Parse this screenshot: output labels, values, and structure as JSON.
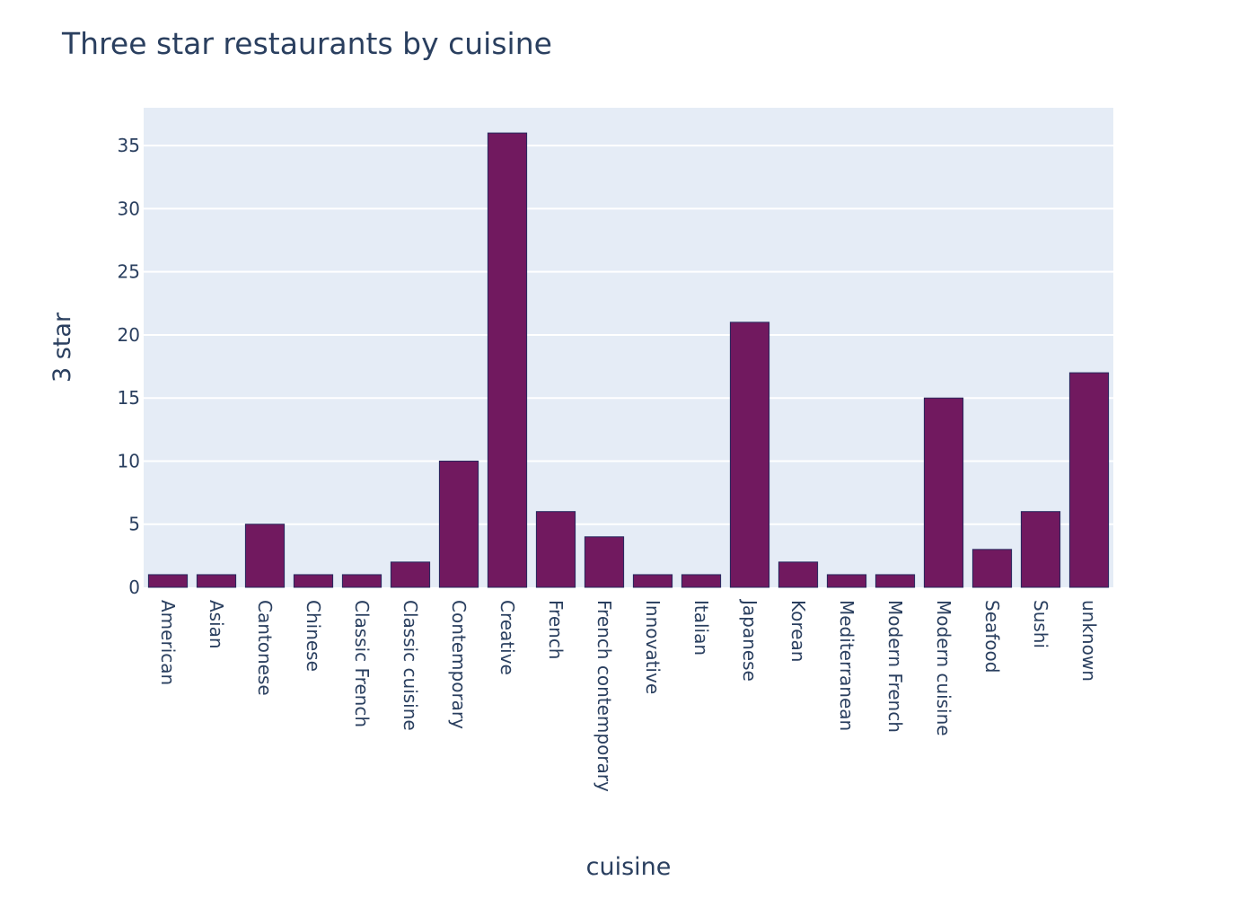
{
  "chart_data": {
    "type": "bar",
    "title": "Three star restaurants by cuisine",
    "xlabel": "cuisine",
    "ylabel": "3 star",
    "categories": [
      "American",
      "Asian",
      "Cantonese",
      "Chinese",
      "Classic French",
      "Classic cuisine",
      "Contemporary",
      "Creative",
      "French",
      "French contemporary",
      "Innovative",
      "Italian",
      "Japanese",
      "Korean",
      "Mediterranean",
      "Modern French",
      "Modern cuisine",
      "Seafood",
      "Sushi",
      "unknown"
    ],
    "values": [
      1,
      1,
      5,
      1,
      1,
      2,
      10,
      36,
      6,
      4,
      1,
      1,
      21,
      2,
      1,
      1,
      15,
      3,
      6,
      17
    ],
    "ylim": [
      0,
      38
    ],
    "yticks": [
      0,
      5,
      10,
      15,
      20,
      25,
      30,
      35
    ],
    "grid": true,
    "legend": "none",
    "colors": {
      "bar_fill": "#71195f",
      "bar_outline": "#26285e",
      "plot_background": "#e5ecf6",
      "gridline": "#ffffff",
      "text": "#2a3f5f"
    }
  }
}
